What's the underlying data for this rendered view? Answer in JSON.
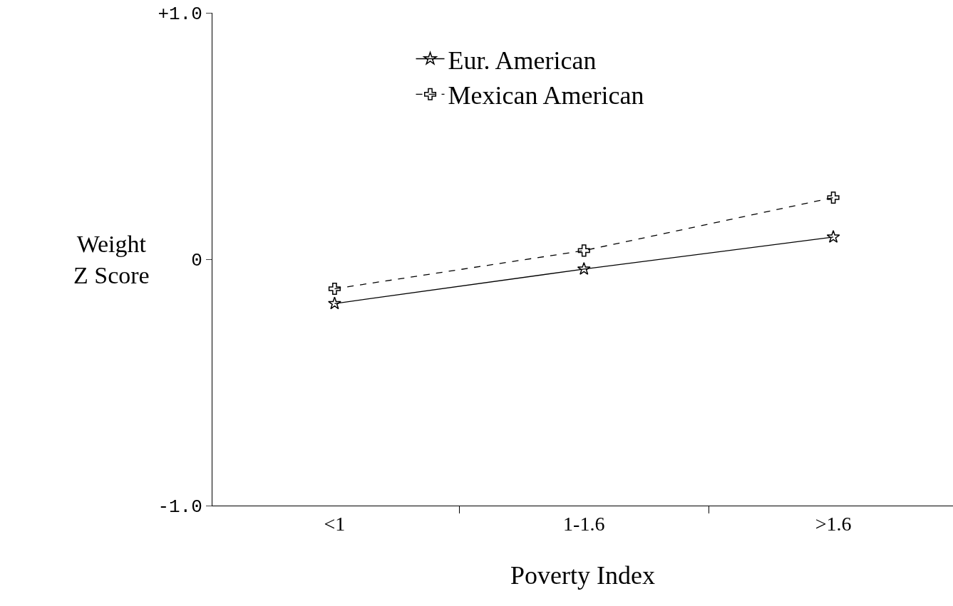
{
  "chart_data": {
    "type": "line",
    "xlabel": "Poverty Index",
    "ylabel": "Weight\nZ Score",
    "categories": [
      "<1",
      "1-1.6",
      ">1.6"
    ],
    "series": [
      {
        "name": "Eur. American",
        "color": "#000000",
        "marker": "star",
        "line_style": "solid",
        "values": [
          -0.18,
          -0.04,
          0.09
        ]
      },
      {
        "name": "Mexican American",
        "color": "#000000",
        "marker": "cross",
        "line_style": "dashed",
        "values": [
          -0.12,
          0.035,
          0.25
        ]
      }
    ],
    "ylim": [
      -1,
      1
    ],
    "yticks": [
      {
        "value": -1,
        "label": "-1.0"
      },
      0,
      {
        "value": 1,
        "label": "+1.0"
      }
    ],
    "grid": false,
    "legend": "top"
  }
}
